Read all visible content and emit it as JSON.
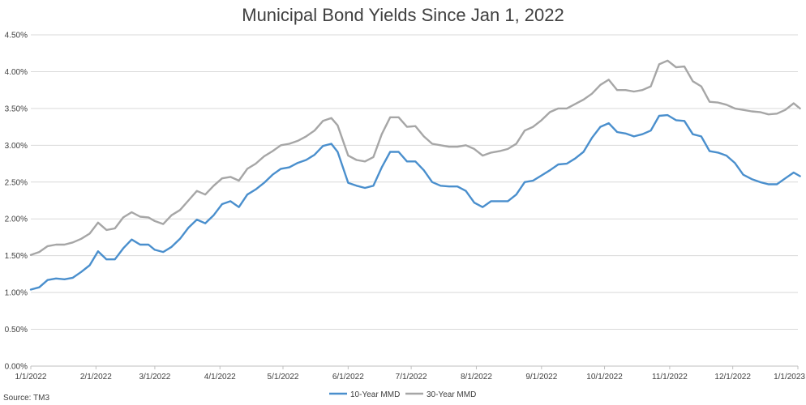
{
  "chart_data": {
    "type": "line",
    "title": "Municipal Bond Yields Since Jan 1, 2022",
    "source": "Source: TM3",
    "xlabel": "",
    "ylabel": "",
    "x_range": [
      "2022-01-01",
      "2023-01-01"
    ],
    "ylim": [
      0,
      4.5
    ],
    "y_ticks": [
      0,
      0.5,
      1.0,
      1.5,
      2.0,
      2.5,
      3.0,
      3.5,
      4.0,
      4.5
    ],
    "y_tick_labels": [
      "0.00%",
      "0.50%",
      "1.00%",
      "1.50%",
      "2.00%",
      "2.50%",
      "3.00%",
      "3.50%",
      "4.00%",
      "4.50%"
    ],
    "x_ticks": [
      "2022-01-01",
      "2022-02-01",
      "2022-03-01",
      "2022-04-01",
      "2022-05-01",
      "2022-06-01",
      "2022-07-01",
      "2022-08-01",
      "2022-09-01",
      "2022-10-01",
      "2022-11-01",
      "2022-12-01",
      "2023-01-01"
    ],
    "x_tick_labels": [
      "1/1/2022",
      "2/1/2022",
      "3/1/2022",
      "4/1/2022",
      "5/1/2022",
      "6/1/2022",
      "7/1/2022",
      "8/1/2022",
      "9/1/2022",
      "10/1/2022",
      "11/1/2022",
      "12/1/2022",
      "1/1/2023"
    ],
    "grid": true,
    "legend_position": "bottom",
    "series": [
      {
        "name": "10-Year MMD",
        "color": "#4a8fcd",
        "points": [
          [
            "2022-01-01",
            1.04
          ],
          [
            "2022-01-05",
            1.07
          ],
          [
            "2022-01-09",
            1.17
          ],
          [
            "2022-01-13",
            1.19
          ],
          [
            "2022-01-17",
            1.18
          ],
          [
            "2022-01-21",
            1.2
          ],
          [
            "2022-01-25",
            1.28
          ],
          [
            "2022-01-29",
            1.37
          ],
          [
            "2022-02-02",
            1.56
          ],
          [
            "2022-02-06",
            1.45
          ],
          [
            "2022-02-10",
            1.45
          ],
          [
            "2022-02-14",
            1.6
          ],
          [
            "2022-02-18",
            1.72
          ],
          [
            "2022-02-22",
            1.65
          ],
          [
            "2022-02-26",
            1.65
          ],
          [
            "2022-03-01",
            1.58
          ],
          [
            "2022-03-05",
            1.55
          ],
          [
            "2022-03-09",
            1.62
          ],
          [
            "2022-03-13",
            1.73
          ],
          [
            "2022-03-17",
            1.88
          ],
          [
            "2022-03-21",
            1.99
          ],
          [
            "2022-03-25",
            1.94
          ],
          [
            "2022-03-29",
            2.05
          ],
          [
            "2022-04-02",
            2.2
          ],
          [
            "2022-04-06",
            2.24
          ],
          [
            "2022-04-10",
            2.16
          ],
          [
            "2022-04-14",
            2.33
          ],
          [
            "2022-04-18",
            2.4
          ],
          [
            "2022-04-22",
            2.49
          ],
          [
            "2022-04-26",
            2.6
          ],
          [
            "2022-04-30",
            2.68
          ],
          [
            "2022-05-04",
            2.7
          ],
          [
            "2022-05-08",
            2.76
          ],
          [
            "2022-05-12",
            2.8
          ],
          [
            "2022-05-16",
            2.87
          ],
          [
            "2022-05-20",
            2.99
          ],
          [
            "2022-05-24",
            3.02
          ],
          [
            "2022-05-27",
            2.91
          ],
          [
            "2022-06-01",
            2.49
          ],
          [
            "2022-06-05",
            2.45
          ],
          [
            "2022-06-09",
            2.42
          ],
          [
            "2022-06-13",
            2.45
          ],
          [
            "2022-06-17",
            2.7
          ],
          [
            "2022-06-21",
            2.91
          ],
          [
            "2022-06-25",
            2.91
          ],
          [
            "2022-06-29",
            2.78
          ],
          [
            "2022-07-03",
            2.78
          ],
          [
            "2022-07-07",
            2.66
          ],
          [
            "2022-07-11",
            2.5
          ],
          [
            "2022-07-15",
            2.45
          ],
          [
            "2022-07-19",
            2.44
          ],
          [
            "2022-07-23",
            2.44
          ],
          [
            "2022-07-27",
            2.38
          ],
          [
            "2022-07-31",
            2.22
          ],
          [
            "2022-08-04",
            2.16
          ],
          [
            "2022-08-08",
            2.24
          ],
          [
            "2022-08-12",
            2.24
          ],
          [
            "2022-08-16",
            2.24
          ],
          [
            "2022-08-20",
            2.33
          ],
          [
            "2022-08-24",
            2.5
          ],
          [
            "2022-08-28",
            2.52
          ],
          [
            "2022-09-01",
            2.59
          ],
          [
            "2022-09-05",
            2.66
          ],
          [
            "2022-09-09",
            2.74
          ],
          [
            "2022-09-13",
            2.75
          ],
          [
            "2022-09-17",
            2.82
          ],
          [
            "2022-09-21",
            2.91
          ],
          [
            "2022-09-25",
            3.1
          ],
          [
            "2022-09-29",
            3.25
          ],
          [
            "2022-10-03",
            3.3
          ],
          [
            "2022-10-07",
            3.18
          ],
          [
            "2022-10-11",
            3.16
          ],
          [
            "2022-10-15",
            3.12
          ],
          [
            "2022-10-19",
            3.15
          ],
          [
            "2022-10-23",
            3.2
          ],
          [
            "2022-10-27",
            3.4
          ],
          [
            "2022-10-31",
            3.41
          ],
          [
            "2022-11-04",
            3.34
          ],
          [
            "2022-11-08",
            3.33
          ],
          [
            "2022-11-12",
            3.15
          ],
          [
            "2022-11-16",
            3.12
          ],
          [
            "2022-11-20",
            2.92
          ],
          [
            "2022-11-24",
            2.9
          ],
          [
            "2022-11-28",
            2.86
          ],
          [
            "2022-12-02",
            2.76
          ],
          [
            "2022-12-06",
            2.6
          ],
          [
            "2022-12-10",
            2.54
          ],
          [
            "2022-12-14",
            2.5
          ],
          [
            "2022-12-18",
            2.47
          ],
          [
            "2022-12-22",
            2.47
          ],
          [
            "2022-12-26",
            2.55
          ],
          [
            "2022-12-30",
            2.63
          ],
          [
            "2023-01-02",
            2.58
          ]
        ]
      },
      {
        "name": "30-Year MMD",
        "color": "#a6a6a6",
        "points": [
          [
            "2022-01-01",
            1.51
          ],
          [
            "2022-01-05",
            1.55
          ],
          [
            "2022-01-09",
            1.63
          ],
          [
            "2022-01-13",
            1.65
          ],
          [
            "2022-01-17",
            1.65
          ],
          [
            "2022-01-21",
            1.68
          ],
          [
            "2022-01-25",
            1.73
          ],
          [
            "2022-01-29",
            1.8
          ],
          [
            "2022-02-02",
            1.95
          ],
          [
            "2022-02-06",
            1.85
          ],
          [
            "2022-02-10",
            1.87
          ],
          [
            "2022-02-14",
            2.02
          ],
          [
            "2022-02-18",
            2.09
          ],
          [
            "2022-02-22",
            2.03
          ],
          [
            "2022-02-26",
            2.02
          ],
          [
            "2022-03-01",
            1.97
          ],
          [
            "2022-03-05",
            1.93
          ],
          [
            "2022-03-09",
            2.05
          ],
          [
            "2022-03-13",
            2.12
          ],
          [
            "2022-03-17",
            2.25
          ],
          [
            "2022-03-21",
            2.38
          ],
          [
            "2022-03-25",
            2.33
          ],
          [
            "2022-03-29",
            2.45
          ],
          [
            "2022-04-02",
            2.55
          ],
          [
            "2022-04-06",
            2.57
          ],
          [
            "2022-04-10",
            2.52
          ],
          [
            "2022-04-14",
            2.68
          ],
          [
            "2022-04-18",
            2.75
          ],
          [
            "2022-04-22",
            2.85
          ],
          [
            "2022-04-26",
            2.92
          ],
          [
            "2022-04-30",
            3.0
          ],
          [
            "2022-05-04",
            3.02
          ],
          [
            "2022-05-08",
            3.06
          ],
          [
            "2022-05-12",
            3.12
          ],
          [
            "2022-05-16",
            3.2
          ],
          [
            "2022-05-20",
            3.33
          ],
          [
            "2022-05-24",
            3.37
          ],
          [
            "2022-05-27",
            3.27
          ],
          [
            "2022-06-01",
            2.86
          ],
          [
            "2022-06-05",
            2.8
          ],
          [
            "2022-06-09",
            2.78
          ],
          [
            "2022-06-13",
            2.84
          ],
          [
            "2022-06-17",
            3.15
          ],
          [
            "2022-06-21",
            3.38
          ],
          [
            "2022-06-25",
            3.38
          ],
          [
            "2022-06-29",
            3.25
          ],
          [
            "2022-07-03",
            3.26
          ],
          [
            "2022-07-07",
            3.12
          ],
          [
            "2022-07-11",
            3.02
          ],
          [
            "2022-07-15",
            3.0
          ],
          [
            "2022-07-19",
            2.98
          ],
          [
            "2022-07-23",
            2.98
          ],
          [
            "2022-07-27",
            3.0
          ],
          [
            "2022-07-31",
            2.95
          ],
          [
            "2022-08-04",
            2.86
          ],
          [
            "2022-08-08",
            2.9
          ],
          [
            "2022-08-12",
            2.92
          ],
          [
            "2022-08-16",
            2.95
          ],
          [
            "2022-08-20",
            3.02
          ],
          [
            "2022-08-24",
            3.2
          ],
          [
            "2022-08-28",
            3.25
          ],
          [
            "2022-09-01",
            3.34
          ],
          [
            "2022-09-05",
            3.45
          ],
          [
            "2022-09-09",
            3.5
          ],
          [
            "2022-09-13",
            3.5
          ],
          [
            "2022-09-17",
            3.56
          ],
          [
            "2022-09-21",
            3.62
          ],
          [
            "2022-09-25",
            3.7
          ],
          [
            "2022-09-29",
            3.82
          ],
          [
            "2022-10-03",
            3.89
          ],
          [
            "2022-10-07",
            3.75
          ],
          [
            "2022-10-11",
            3.75
          ],
          [
            "2022-10-15",
            3.73
          ],
          [
            "2022-10-19",
            3.75
          ],
          [
            "2022-10-23",
            3.8
          ],
          [
            "2022-10-27",
            4.1
          ],
          [
            "2022-10-31",
            4.15
          ],
          [
            "2022-11-04",
            4.06
          ],
          [
            "2022-11-08",
            4.07
          ],
          [
            "2022-11-12",
            3.87
          ],
          [
            "2022-11-16",
            3.8
          ],
          [
            "2022-11-20",
            3.59
          ],
          [
            "2022-11-24",
            3.58
          ],
          [
            "2022-11-28",
            3.55
          ],
          [
            "2022-12-02",
            3.5
          ],
          [
            "2022-12-06",
            3.48
          ],
          [
            "2022-12-10",
            3.46
          ],
          [
            "2022-12-14",
            3.45
          ],
          [
            "2022-12-18",
            3.42
          ],
          [
            "2022-12-22",
            3.43
          ],
          [
            "2022-12-26",
            3.48
          ],
          [
            "2022-12-30",
            3.57
          ],
          [
            "2023-01-02",
            3.5
          ]
        ]
      }
    ]
  }
}
